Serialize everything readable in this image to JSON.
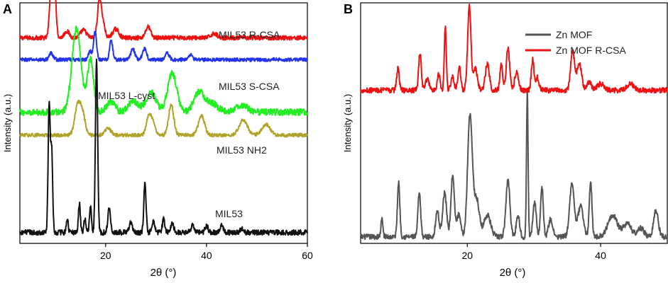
{
  "chart_data": [
    {
      "type": "line",
      "panel_label": "A",
      "title": "",
      "xlabel": "2θ (°)",
      "ylabel": "Intensity (a.u.)",
      "xlim": [
        3,
        60
      ],
      "xticks": [
        20,
        40,
        60
      ],
      "grid": false,
      "series": [
        {
          "name": "MIL53 R-CSA",
          "color": "#ee1111",
          "baseline": 9.4,
          "peaks": [
            [
              9.3,
              3.0,
              0.35
            ],
            [
              9.9,
              2.0,
              0.3
            ],
            [
              12.3,
              0.3,
              0.5
            ],
            [
              15.6,
              0.35,
              0.6
            ],
            [
              18.8,
              1.8,
              0.4
            ],
            [
              19.6,
              0.5,
              0.35
            ],
            [
              22.0,
              0.4,
              0.6
            ],
            [
              28.4,
              0.5,
              0.5
            ],
            [
              41.5,
              0.2,
              0.6
            ]
          ],
          "noise": 0.1
        },
        {
          "name": "MIL53 S-CSA",
          "color": "#2233ee",
          "baseline": 8.4,
          "peaks": [
            [
              9.2,
              0.3,
              0.4
            ],
            [
              16.9,
              0.4,
              0.3
            ],
            [
              17.9,
              1.3,
              0.3
            ],
            [
              21.1,
              0.9,
              0.3
            ],
            [
              25.4,
              0.5,
              0.4
            ],
            [
              27.7,
              0.5,
              0.4
            ],
            [
              32.2,
              0.3,
              0.4
            ],
            [
              36.8,
              0.25,
              0.4
            ]
          ],
          "noise": 0.08
        },
        {
          "name": "MIL53 L-cyst",
          "color": "#22ee22",
          "baseline": 6.0,
          "peaks": [
            [
              14.2,
              3.8,
              0.9
            ],
            [
              17.0,
              2.4,
              0.6
            ],
            [
              21.0,
              0.5,
              0.8
            ],
            [
              25.5,
              0.5,
              1.0
            ],
            [
              29.0,
              0.9,
              1.0
            ],
            [
              33.2,
              1.8,
              0.9
            ],
            [
              38.5,
              0.9,
              1.0
            ],
            [
              41.0,
              0.4,
              1.2
            ],
            [
              47.0,
              0.3,
              1.2
            ]
          ],
          "noise": 0.15
        },
        {
          "name": "MIL53 NH2",
          "color": "#b0a22a",
          "baseline": 4.95,
          "peaks": [
            [
              14.5,
              1.4,
              0.6
            ],
            [
              15.5,
              0.8,
              0.5
            ],
            [
              20.5,
              0.3,
              0.6
            ],
            [
              28.6,
              0.9,
              0.5
            ],
            [
              29.5,
              0.5,
              0.4
            ],
            [
              33.0,
              1.4,
              0.5
            ],
            [
              39.0,
              0.9,
              0.6
            ],
            [
              47.3,
              0.7,
              0.8
            ],
            [
              51.8,
              0.5,
              0.8
            ]
          ],
          "noise": 0.08
        },
        {
          "name": "MIL53",
          "color": "#111111",
          "baseline": 0.5,
          "peaks": [
            [
              8.8,
              5.8,
              0.2
            ],
            [
              9.3,
              3.8,
              0.2
            ],
            [
              12.4,
              0.6,
              0.2
            ],
            [
              14.8,
              1.3,
              0.2
            ],
            [
              15.9,
              0.6,
              0.2
            ],
            [
              17.0,
              1.2,
              0.2
            ],
            [
              18.2,
              7.9,
              0.22
            ],
            [
              20.7,
              1.1,
              0.25
            ],
            [
              25.0,
              0.5,
              0.3
            ],
            [
              27.8,
              2.3,
              0.22
            ],
            [
              29.5,
              0.5,
              0.3
            ],
            [
              31.5,
              0.6,
              0.25
            ],
            [
              33.2,
              0.4,
              0.3
            ],
            [
              37.2,
              0.3,
              0.3
            ],
            [
              40.0,
              0.3,
              0.3
            ],
            [
              43.0,
              0.3,
              0.3
            ],
            [
              47.0,
              0.2,
              0.3
            ]
          ],
          "noise": 0.12
        }
      ],
      "annotations": [
        "MIL53 R-CSA",
        "MIL53 S-CSA",
        "MIL53 L-cyst",
        "MIL53 NH2",
        "MIL53"
      ]
    },
    {
      "type": "line",
      "panel_label": "B",
      "title": "",
      "xlabel": "2θ (°)",
      "ylabel": "Intensity (a.u.)",
      "xlim": [
        4,
        50
      ],
      "xticks": [
        20,
        40
      ],
      "grid": false,
      "legend": {
        "placement": "top-right",
        "entries": [
          {
            "label": "Zn MOF",
            "color": "#555555"
          },
          {
            "label": "Zn MOF R-CSA",
            "color": "#ee1111"
          }
        ]
      },
      "series": [
        {
          "name": "Zn MOF",
          "color": "#555555",
          "baseline": 0.3,
          "peaks": [
            [
              7.2,
              0.8,
              0.15
            ],
            [
              9.7,
              2.5,
              0.18
            ],
            [
              12.8,
              2.0,
              0.2
            ],
            [
              15.5,
              1.2,
              0.25
            ],
            [
              16.6,
              2.0,
              0.3
            ],
            [
              17.8,
              2.8,
              0.25
            ],
            [
              18.7,
              1.0,
              0.3
            ],
            [
              20.4,
              5.6,
              0.35
            ],
            [
              21.4,
              1.7,
              0.4
            ],
            [
              23.0,
              1.0,
              0.5
            ],
            [
              26.1,
              2.6,
              0.3
            ],
            [
              27.6,
              1.0,
              0.25
            ],
            [
              29.0,
              6.6,
              0.12
            ],
            [
              30.1,
              1.6,
              0.25
            ],
            [
              31.2,
              2.3,
              0.2
            ],
            [
              32.5,
              0.8,
              0.3
            ],
            [
              35.7,
              2.4,
              0.35
            ],
            [
              37.0,
              1.4,
              0.4
            ],
            [
              38.5,
              2.5,
              0.2
            ],
            [
              41.8,
              1.0,
              0.7
            ],
            [
              44.0,
              0.6,
              0.6
            ],
            [
              46.0,
              0.4,
              0.5
            ],
            [
              48.3,
              1.2,
              0.35
            ]
          ],
          "noise": 0.12
        },
        {
          "name": "Zn MOF R-CSA",
          "color": "#ee1111",
          "baseline": 7.0,
          "peaks": [
            [
              9.6,
              1.0,
              0.2
            ],
            [
              12.9,
              1.7,
              0.2
            ],
            [
              14.0,
              0.5,
              0.3
            ],
            [
              15.7,
              0.8,
              0.2
            ],
            [
              16.7,
              2.9,
              0.15
            ],
            [
              17.8,
              0.6,
              0.25
            ],
            [
              18.8,
              1.1,
              0.2
            ],
            [
              20.3,
              3.8,
              0.25
            ],
            [
              21.2,
              1.0,
              0.3
            ],
            [
              23.0,
              1.2,
              0.3
            ],
            [
              25.1,
              1.2,
              0.2
            ],
            [
              26.1,
              1.9,
              0.25
            ],
            [
              27.4,
              0.8,
              0.3
            ],
            [
              29.8,
              1.4,
              0.2
            ],
            [
              30.5,
              0.6,
              0.25
            ],
            [
              35.8,
              1.8,
              0.3
            ],
            [
              36.8,
              1.2,
              0.35
            ],
            [
              38.3,
              0.4,
              0.3
            ],
            [
              40.0,
              0.3,
              0.5
            ],
            [
              44.5,
              0.3,
              0.5
            ]
          ],
          "noise": 0.12
        }
      ]
    }
  ]
}
